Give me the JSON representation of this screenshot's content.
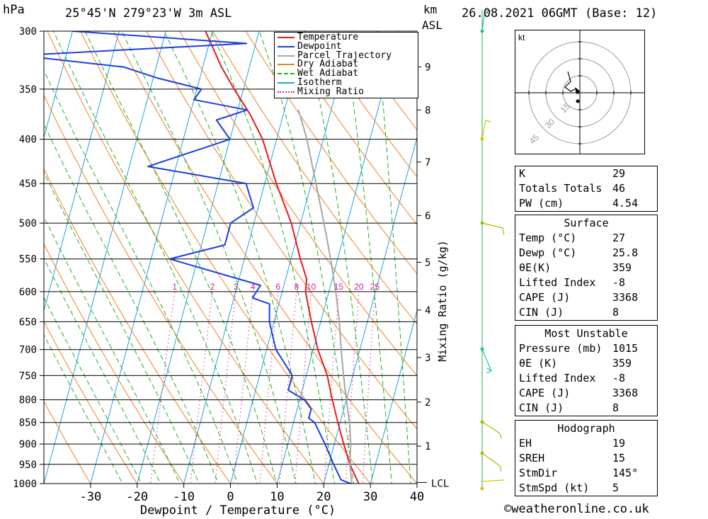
{
  "header": {
    "hpa_label": "hPa",
    "location": "25°45'N  279°23'W  3m  ASL",
    "km_label": "km",
    "asl_label": "ASL",
    "date": "26.08.2021  06GMT  (Base: 12)"
  },
  "chart_data": {
    "type": "line",
    "xlabel": "Dewpoint / Temperature (°C)",
    "x_ticks": [
      -30,
      -20,
      -10,
      0,
      10,
      20,
      30,
      40
    ],
    "xlim": [
      -40,
      40
    ],
    "ylabel_left": "hPa",
    "pressure_levels": [
      300,
      350,
      400,
      450,
      500,
      550,
      600,
      650,
      700,
      750,
      800,
      850,
      900,
      950,
      1000
    ],
    "ylim": [
      1000,
      300
    ],
    "km_ticks": [
      {
        "label": "9",
        "p": 330
      },
      {
        "label": "8",
        "p": 370
      },
      {
        "label": "7",
        "p": 425
      },
      {
        "label": "6",
        "p": 490
      },
      {
        "label": "5",
        "p": 555
      },
      {
        "label": "4",
        "p": 630
      },
      {
        "label": "3",
        "p": 715
      },
      {
        "label": "2",
        "p": 805
      },
      {
        "label": "1",
        "p": 905
      }
    ],
    "lcl_label": "LCL",
    "lcl_pressure": 997,
    "mixing_ratio_label": "Mixing Ratio (g/kg)",
    "mixing_ratio_values": [
      "1",
      "2",
      "3",
      "4",
      "6",
      "8",
      "10",
      "15",
      "20",
      "25"
    ],
    "skew_deg_per_decade": 50,
    "series": [
      {
        "name": "Temperature",
        "color": "#e8191c",
        "points": [
          [
            1000,
            27.5
          ],
          [
            950,
            24.5
          ],
          [
            900,
            22
          ],
          [
            850,
            19.5
          ],
          [
            800,
            17
          ],
          [
            750,
            14.5
          ],
          [
            700,
            11
          ],
          [
            650,
            8
          ],
          [
            600,
            5
          ],
          [
            580,
            4.5
          ],
          [
            550,
            2
          ],
          [
            500,
            -2
          ],
          [
            450,
            -7.5
          ],
          [
            400,
            -13
          ],
          [
            375,
            -17
          ],
          [
            350,
            -22
          ],
          [
            330,
            -26
          ],
          [
            300,
            -31.5
          ]
        ]
      },
      {
        "name": "Dewpoint",
        "color": "#1a3fe0",
        "points": [
          [
            1000,
            25.8
          ],
          [
            990,
            23.5
          ],
          [
            950,
            21
          ],
          [
            900,
            18
          ],
          [
            850,
            14.5
          ],
          [
            840,
            13
          ],
          [
            820,
            13
          ],
          [
            800,
            11
          ],
          [
            780,
            7
          ],
          [
            750,
            7
          ],
          [
            700,
            2
          ],
          [
            650,
            -1
          ],
          [
            620,
            -2
          ],
          [
            610,
            -6
          ],
          [
            590,
            -5
          ],
          [
            550,
            -26
          ],
          [
            530,
            -15
          ],
          [
            500,
            -15
          ],
          [
            480,
            -11
          ],
          [
            450,
            -14
          ],
          [
            430,
            -36
          ],
          [
            400,
            -20
          ],
          [
            380,
            -24
          ],
          [
            370,
            -18
          ],
          [
            360,
            -30
          ],
          [
            350,
            -29
          ],
          [
            340,
            -39
          ],
          [
            330,
            -47
          ],
          [
            320,
            -70
          ],
          [
            310,
            -22
          ],
          [
            300,
            -60
          ]
        ]
      },
      {
        "name": "Parcel Trajectory",
        "color": "#a6a6a6",
        "points": [
          [
            1000,
            26
          ],
          [
            950,
            24.5
          ],
          [
            900,
            23.5
          ],
          [
            850,
            22
          ],
          [
            800,
            20
          ],
          [
            750,
            18
          ],
          [
            700,
            16
          ],
          [
            650,
            14
          ],
          [
            600,
            11.5
          ],
          [
            550,
            8.5
          ],
          [
            500,
            5
          ],
          [
            450,
            1
          ],
          [
            400,
            -3.5
          ],
          [
            370,
            -7
          ]
        ]
      }
    ],
    "legend": [
      {
        "label": "Temperature",
        "color": "#e8191c",
        "style": "solid"
      },
      {
        "label": "Dewpoint",
        "color": "#1a3fe0",
        "style": "solid"
      },
      {
        "label": "Parcel Trajectory",
        "color": "#a6a6a6",
        "style": "solid"
      },
      {
        "label": "Dry Adiabat",
        "color": "#f08020",
        "style": "solid"
      },
      {
        "label": "Wet Adiabat",
        "color": "#20b020",
        "style": "dashed"
      },
      {
        "label": "Isotherm",
        "color": "#20a0e0",
        "style": "solid"
      },
      {
        "label": "Mixing Ratio",
        "color": "#d020a0",
        "style": "dotted"
      }
    ],
    "legend_position": "top-right"
  },
  "hodograph": {
    "unit_label": "kt",
    "ring_labels": [
      "15",
      "30",
      "45"
    ]
  },
  "indices": {
    "top": [
      {
        "label": "K",
        "value": "29"
      },
      {
        "label": "Totals Totals",
        "value": "46"
      },
      {
        "label": "PW (cm)",
        "value": "4.54"
      }
    ],
    "surface": {
      "title": "Surface",
      "rows": [
        {
          "label": "Temp (°C)",
          "value": "27"
        },
        {
          "label": "Dewp (°C)",
          "value": "25.8"
        },
        {
          "label": "θE(K)",
          "value": "359"
        },
        {
          "label": "Lifted Index",
          "value": "-8"
        },
        {
          "label": "CAPE (J)",
          "value": "3368"
        },
        {
          "label": "CIN (J)",
          "value": "8"
        }
      ]
    },
    "most_unstable": {
      "title": "Most Unstable",
      "rows": [
        {
          "label": "Pressure (mb)",
          "value": "1015"
        },
        {
          "label": "θE (K)",
          "value": "359"
        },
        {
          "label": "Lifted Index",
          "value": "-8"
        },
        {
          "label": "CAPE (J)",
          "value": "3368"
        },
        {
          "label": "CIN (J)",
          "value": "8"
        }
      ]
    },
    "hodograph_section": {
      "title": "Hodograph",
      "rows": [
        {
          "label": "EH",
          "value": "19"
        },
        {
          "label": "SREH",
          "value": "15"
        },
        {
          "label": "StmDir",
          "value": "145°"
        },
        {
          "label": "StmSpd (kt)",
          "value": "5"
        }
      ]
    }
  },
  "footer": {
    "copyright_symbol": "©",
    "site": "weatheronline.co.uk"
  }
}
